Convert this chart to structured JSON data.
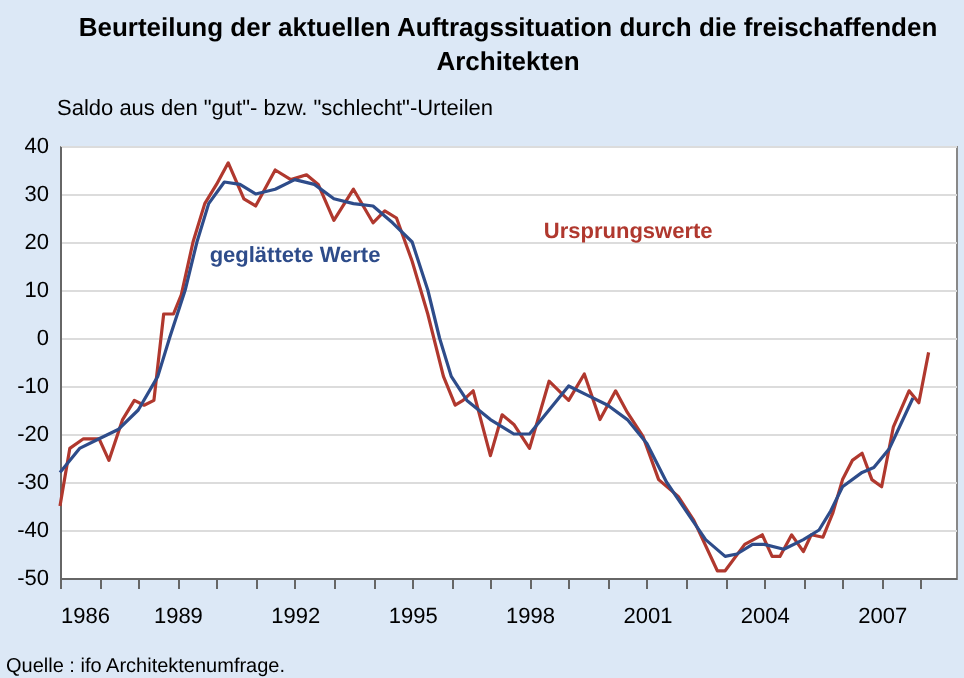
{
  "chart_data": {
    "type": "line",
    "title": "Beurteilung der aktuellen Auftragssituation durch die freischaffenden Architekten",
    "ylabel": "Saldo aus den \"gut\"- bzw. \"schlecht\"-Urteilen",
    "annotations": [
      "Quelle : ifo Architektenumfrage."
    ],
    "series": [
      {
        "name": "Ursprungswerte",
        "color": "#b0382e",
        "x": [
          1986.0,
          1986.25,
          1986.6,
          1987.0,
          1987.25,
          1987.6,
          1987.9,
          1988.15,
          1988.4,
          1988.65,
          1988.9,
          1989.1,
          1989.4,
          1989.7,
          1990.0,
          1990.3,
          1990.7,
          1991.0,
          1991.5,
          1991.9,
          1992.3,
          1992.6,
          1993.0,
          1993.5,
          1994.0,
          1994.3,
          1994.6,
          1995.0,
          1995.4,
          1995.8,
          1996.1,
          1996.3,
          1996.56,
          1997.0,
          1997.3,
          1997.6,
          1998.0,
          1998.5,
          1999.0,
          1999.4,
          1999.8,
          2000.2,
          2000.5,
          2000.9,
          2001.3,
          2001.8,
          2002.2,
          2002.8,
          2003.0,
          2003.5,
          2003.95,
          2004.2,
          2004.4,
          2004.7,
          2005.0,
          2005.2,
          2005.5,
          2005.75,
          2006.0,
          2006.25,
          2006.5,
          2006.75,
          2007.0,
          2007.3,
          2007.7,
          2007.95,
          2008.2
        ],
        "values": [
          -35,
          -23,
          -21,
          -21,
          -25.5,
          -17,
          -13,
          -14,
          -13,
          5,
          5,
          9,
          20,
          28,
          32,
          36.5,
          29,
          27.5,
          35,
          33,
          34,
          32,
          24.5,
          31,
          24,
          26.5,
          25,
          16,
          5,
          -8,
          -14,
          -13,
          -11,
          -24.5,
          -16,
          -18,
          -23,
          -9,
          -13,
          -7.5,
          -17,
          -11,
          -15.5,
          -20.5,
          -29.5,
          -33,
          -38,
          -48.5,
          -48.5,
          -43,
          -41,
          -45.5,
          -45.5,
          -41,
          -44.5,
          -41,
          -41.5,
          -36.5,
          -29.5,
          -25.5,
          -24,
          -29.5,
          -31,
          -18.5,
          -11,
          -13.5,
          -3
        ]
      },
      {
        "name": "geglättete Werte",
        "color": "#2e4c8a",
        "x": [
          1986.0,
          1986.5,
          1987.0,
          1987.5,
          1988.0,
          1988.5,
          1988.8,
          1989.2,
          1989.5,
          1989.8,
          1990.2,
          1990.6,
          1991.0,
          1991.5,
          1992.0,
          1992.5,
          1993.0,
          1993.5,
          1994.0,
          1994.5,
          1995.0,
          1995.4,
          1995.7,
          1996.0,
          1996.4,
          1997.0,
          1997.6,
          1998.0,
          1998.5,
          1999.0,
          1999.5,
          2000.0,
          2000.5,
          2001.0,
          2001.5,
          2002.0,
          2002.5,
          2003.0,
          2003.3,
          2003.7,
          2004.0,
          2004.5,
          2005.0,
          2005.4,
          2005.7,
          2006.0,
          2006.5,
          2006.8,
          2007.2,
          2007.6,
          2007.8
        ],
        "values": [
          -28,
          -23,
          -21,
          -19,
          -15,
          -8,
          0,
          10,
          20,
          28,
          32.5,
          32,
          30,
          31,
          33,
          32,
          29,
          28,
          27.5,
          24,
          20,
          10,
          0,
          -8,
          -13,
          -17,
          -20,
          -20,
          -15,
          -10,
          -12,
          -14,
          -17,
          -22,
          -30,
          -36,
          -42,
          -45.5,
          -45,
          -43,
          -43,
          -44,
          -42,
          -40,
          -36,
          -31,
          -28,
          -27,
          -23,
          -16,
          -12.5
        ]
      }
    ],
    "xlim": [
      1986,
      2008.9
    ],
    "xticks": [
      1986,
      {
        "value": 1987,
        "label": null
      },
      {
        "value": 1988,
        "label": null
      },
      1989,
      {
        "value": 1990,
        "label": null
      },
      {
        "value": 1991,
        "label": null
      },
      1992,
      {
        "value": 1993,
        "label": null
      },
      {
        "value": 1994,
        "label": null
      },
      1995,
      {
        "value": 1996,
        "label": null
      },
      {
        "value": 1997,
        "label": null
      },
      1998,
      {
        "value": 1999,
        "label": null
      },
      {
        "value": 2000,
        "label": null
      },
      2001,
      {
        "value": 2002,
        "label": null
      },
      {
        "value": 2003,
        "label": null
      },
      2004,
      {
        "value": 2005,
        "label": null
      },
      {
        "value": 2006,
        "label": null
      },
      2007,
      {
        "value": 2008,
        "label": null
      }
    ],
    "ylim": [
      -50,
      40
    ],
    "yticks": [
      -50,
      -40,
      -30,
      -20,
      -10,
      0,
      10,
      20,
      30,
      40
    ],
    "grid": "y",
    "line_style": "solid",
    "marker": "none"
  }
}
